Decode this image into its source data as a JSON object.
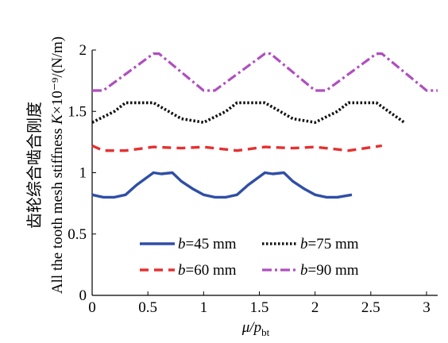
{
  "chart_data": {
    "type": "line",
    "xlabel_main": "μ/p",
    "xlabel_sub": "bt",
    "ylabel_cn": "齿轮综合啮合刚度",
    "ylabel_en": "All the tooth mesh stiffness ",
    "ylabel_var": "K",
    "ylabel_unit": "×10⁻⁹/(N/m)",
    "xlim": [
      0,
      3.1
    ],
    "ylim": [
      0,
      2
    ],
    "xticks": [
      {
        "v": 0,
        "label": "0"
      },
      {
        "v": 0.5,
        "label": "0.5"
      },
      {
        "v": 1,
        "label": "1"
      },
      {
        "v": 1.5,
        "label": "1.5"
      },
      {
        "v": 2,
        "label": "2"
      },
      {
        "v": 2.5,
        "label": "2.5"
      },
      {
        "v": 3,
        "label": "3"
      }
    ],
    "yticks": [
      {
        "v": 0,
        "label": "0"
      },
      {
        "v": 0.5,
        "label": "0.5"
      },
      {
        "v": 1,
        "label": "1"
      },
      {
        "v": 1.5,
        "label": "1.5"
      },
      {
        "v": 2,
        "label": "2"
      }
    ],
    "series": [
      {
        "name": "b=45 mm",
        "var": "b",
        "value": "=45 mm",
        "color": "#2f4ea6",
        "dash": "solid",
        "x": [
          0,
          0.1,
          0.2,
          0.3,
          0.4,
          0.55,
          0.62,
          0.72,
          0.8,
          0.9,
          1.0,
          1.1,
          1.2,
          1.3,
          1.4,
          1.55,
          1.62,
          1.72,
          1.8,
          1.9,
          2.0,
          2.1,
          2.2,
          2.33
        ],
        "y": [
          0.82,
          0.8,
          0.8,
          0.82,
          0.9,
          1.0,
          0.99,
          1.0,
          0.93,
          0.87,
          0.82,
          0.8,
          0.8,
          0.82,
          0.9,
          1.0,
          0.99,
          1.0,
          0.93,
          0.87,
          0.82,
          0.8,
          0.8,
          0.82
        ]
      },
      {
        "name": "b=60 mm",
        "var": "b",
        "value": "=60 mm",
        "color": "#e63030",
        "dash": "dash",
        "x": [
          0,
          0.1,
          0.3,
          0.55,
          0.8,
          1.0,
          1.3,
          1.55,
          1.8,
          2.0,
          2.3,
          2.6
        ],
        "y": [
          1.22,
          1.18,
          1.18,
          1.21,
          1.2,
          1.21,
          1.18,
          1.21,
          1.2,
          1.21,
          1.18,
          1.22
        ]
      },
      {
        "name": "b=75 mm",
        "var": "b",
        "value": "=75 mm",
        "color": "#111111",
        "dash": "dot",
        "x": [
          0,
          0.2,
          0.3,
          0.55,
          0.8,
          1.0,
          1.2,
          1.3,
          1.55,
          1.8,
          2.0,
          2.2,
          2.3,
          2.55,
          2.8
        ],
        "y": [
          1.41,
          1.5,
          1.57,
          1.57,
          1.44,
          1.41,
          1.5,
          1.57,
          1.57,
          1.44,
          1.41,
          1.5,
          1.57,
          1.57,
          1.41
        ]
      },
      {
        "name": "b=90 mm",
        "var": "b",
        "value": "=90 mm",
        "color": "#b04ec0",
        "dash": "dashdot",
        "x": [
          0,
          0.1,
          0.55,
          0.6,
          1.0,
          1.1,
          1.55,
          1.6,
          2.0,
          2.1,
          2.55,
          2.6,
          3.0,
          3.1
        ],
        "y": [
          1.67,
          1.67,
          1.97,
          1.97,
          1.67,
          1.67,
          1.97,
          1.97,
          1.67,
          1.67,
          1.97,
          1.97,
          1.67,
          1.67
        ]
      }
    ],
    "legend": "inside lower-left, two columns"
  }
}
